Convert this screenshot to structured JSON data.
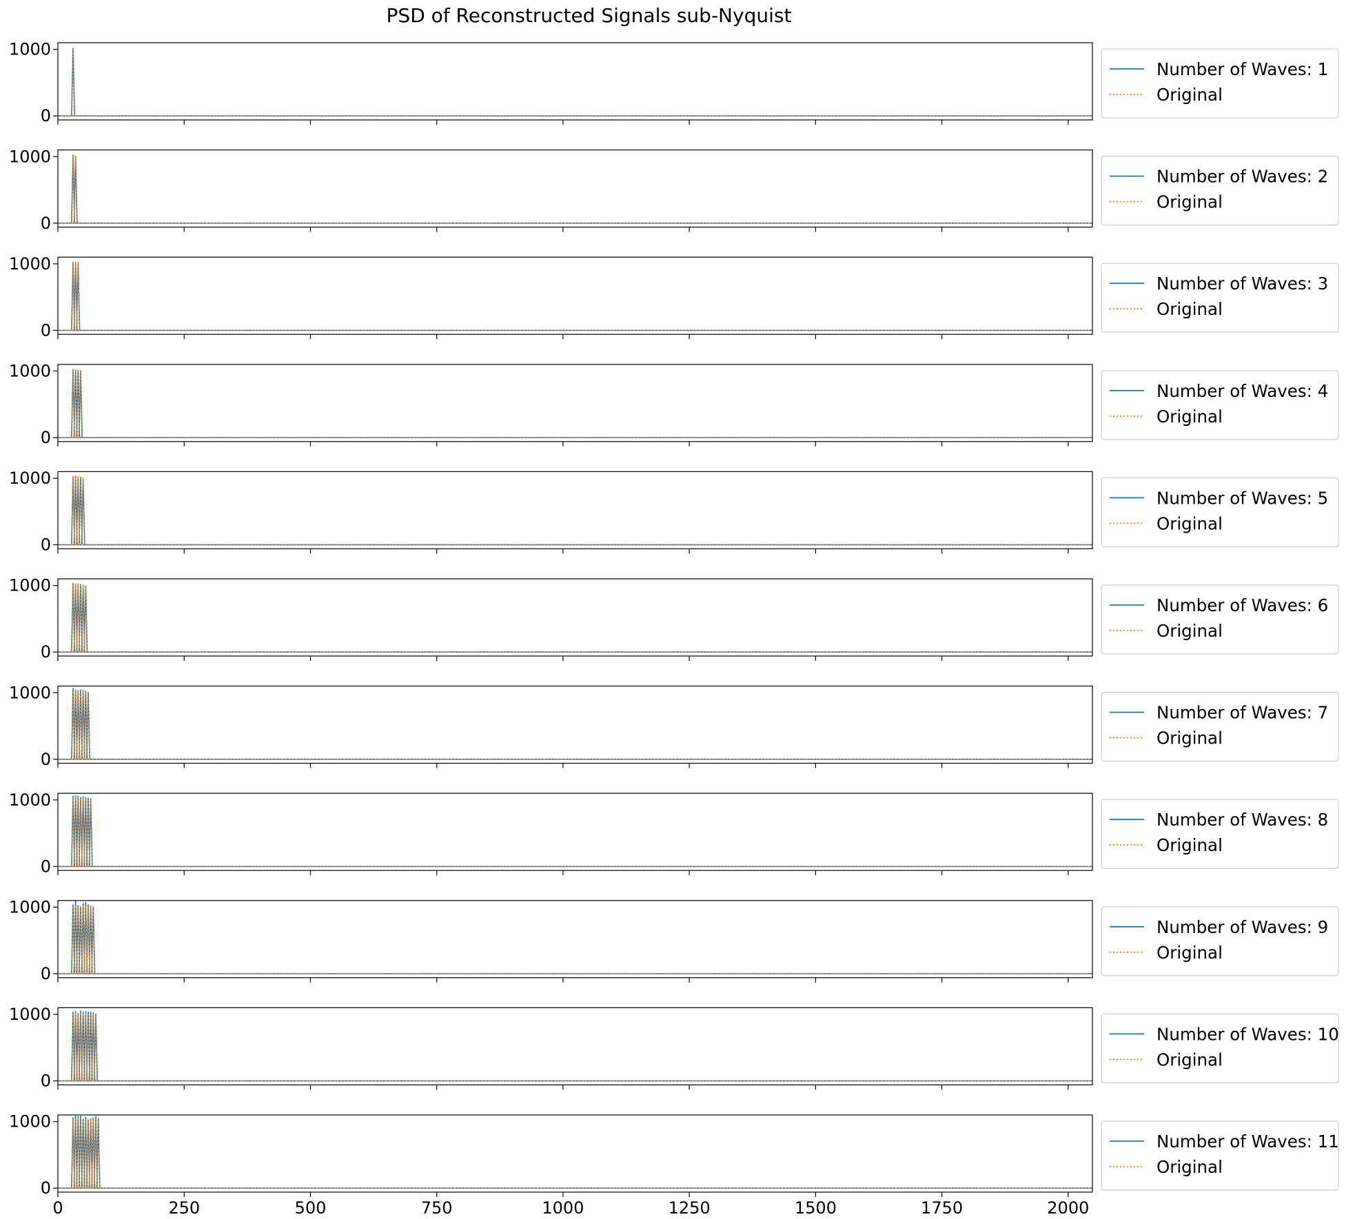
{
  "chart_data": {
    "type": "line",
    "title": "PSD of Reconstructed Signals sub-Nyquist",
    "xlabel": "",
    "ylabel": "",
    "xlim": [
      0,
      2048
    ],
    "ylim": [
      -60,
      1100
    ],
    "x_ticks": [
      0,
      250,
      500,
      750,
      1000,
      1250,
      1500,
      1750,
      2000
    ],
    "y_ticks": [
      0,
      1000
    ],
    "grid": false,
    "legend_placement": "outside right",
    "colors": {
      "reconstructed": "#1f77b4",
      "original": "#ff7f0e"
    },
    "panels": [
      {
        "series": [
          {
            "name": "Number of Waves: 1",
            "style": "solid",
            "peaks": [
              [
                30,
                1020
              ]
            ]
          },
          {
            "name": "Original",
            "style": "dotted",
            "peaks": [
              [
                30,
                1020
              ]
            ]
          }
        ]
      },
      {
        "series": [
          {
            "name": "Number of Waves: 2",
            "style": "solid",
            "peaks": [
              [
                30,
                1030
              ],
              [
                35,
                1010
              ]
            ]
          },
          {
            "name": "Original",
            "style": "dotted",
            "peaks": [
              [
                30,
                1030
              ],
              [
                35,
                1010
              ]
            ]
          }
        ]
      },
      {
        "series": [
          {
            "name": "Number of Waves: 3",
            "style": "solid",
            "peaks": [
              [
                30,
                1030
              ],
              [
                35,
                1030
              ],
              [
                40,
                1030
              ]
            ]
          },
          {
            "name": "Original",
            "style": "dotted",
            "peaks": [
              [
                30,
                1030
              ],
              [
                35,
                1030
              ],
              [
                40,
                1030
              ]
            ]
          }
        ]
      },
      {
        "series": [
          {
            "name": "Number of Waves: 4",
            "style": "solid",
            "peaks": [
              [
                30,
                1030
              ],
              [
                35,
                1020
              ],
              [
                40,
                1020
              ],
              [
                45,
                1010
              ]
            ]
          },
          {
            "name": "Original",
            "style": "dotted",
            "peaks": [
              [
                30,
                1030
              ],
              [
                35,
                1020
              ],
              [
                40,
                1020
              ],
              [
                45,
                1010
              ]
            ]
          }
        ]
      },
      {
        "series": [
          {
            "name": "Number of Waves: 5",
            "style": "solid",
            "peaks": [
              [
                30,
                1030
              ],
              [
                35,
                1040
              ],
              [
                40,
                1030
              ],
              [
                45,
                1020
              ],
              [
                50,
                1010
              ]
            ]
          },
          {
            "name": "Original",
            "style": "dotted",
            "peaks": [
              [
                30,
                1030
              ],
              [
                35,
                1040
              ],
              [
                40,
                1030
              ],
              [
                45,
                1020
              ],
              [
                50,
                1010
              ]
            ]
          }
        ]
      },
      {
        "series": [
          {
            "name": "Number of Waves: 6",
            "style": "solid",
            "peaks": [
              [
                30,
                1040
              ],
              [
                35,
                1030
              ],
              [
                40,
                1030
              ],
              [
                45,
                1020
              ],
              [
                50,
                1010
              ],
              [
                55,
                1000
              ]
            ]
          },
          {
            "name": "Original",
            "style": "dotted",
            "peaks": [
              [
                30,
                1040
              ],
              [
                35,
                1030
              ],
              [
                40,
                1030
              ],
              [
                45,
                1020
              ],
              [
                50,
                1010
              ],
              [
                55,
                1000
              ]
            ]
          }
        ]
      },
      {
        "series": [
          {
            "name": "Number of Waves: 7",
            "style": "solid",
            "peaks": [
              [
                30,
                1070
              ],
              [
                35,
                1050
              ],
              [
                40,
                1040
              ],
              [
                45,
                1050
              ],
              [
                50,
                1040
              ],
              [
                55,
                1030
              ],
              [
                60,
                1010
              ]
            ]
          },
          {
            "name": "Original",
            "style": "dotted",
            "peaks": [
              [
                30,
                1050
              ],
              [
                35,
                1040
              ],
              [
                40,
                1030
              ],
              [
                45,
                1040
              ],
              [
                50,
                1030
              ],
              [
                55,
                1020
              ],
              [
                60,
                1000
              ]
            ]
          }
        ]
      },
      {
        "series": [
          {
            "name": "Number of Waves: 8",
            "style": "solid",
            "peaks": [
              [
                30,
                1060
              ],
              [
                35,
                1070
              ],
              [
                40,
                1060
              ],
              [
                45,
                1040
              ],
              [
                50,
                1050
              ],
              [
                55,
                1040
              ],
              [
                60,
                1030
              ],
              [
                65,
                1020
              ]
            ]
          },
          {
            "name": "Original",
            "style": "dotted",
            "peaks": [
              [
                30,
                1040
              ],
              [
                35,
                1050
              ],
              [
                40,
                1040
              ],
              [
                45,
                1030
              ],
              [
                50,
                1030
              ],
              [
                55,
                1020
              ],
              [
                60,
                1020
              ],
              [
                65,
                1000
              ]
            ]
          }
        ]
      },
      {
        "series": [
          {
            "name": "Number of Waves: 9",
            "style": "solid",
            "peaks": [
              [
                30,
                1040
              ],
              [
                35,
                1100
              ],
              [
                40,
                1030
              ],
              [
                45,
                1010
              ],
              [
                50,
                1060
              ],
              [
                55,
                1080
              ],
              [
                60,
                1040
              ],
              [
                65,
                1020
              ],
              [
                70,
                1010
              ]
            ]
          },
          {
            "name": "Original",
            "style": "dotted",
            "peaks": [
              [
                30,
                1020
              ],
              [
                35,
                1050
              ],
              [
                40,
                1000
              ],
              [
                45,
                990
              ],
              [
                50,
                1030
              ],
              [
                55,
                1030
              ],
              [
                60,
                1010
              ],
              [
                65,
                1000
              ],
              [
                70,
                990
              ]
            ]
          }
        ]
      },
      {
        "series": [
          {
            "name": "Number of Waves: 10",
            "style": "solid",
            "peaks": [
              [
                30,
                1040
              ],
              [
                35,
                1050
              ],
              [
                40,
                1020
              ],
              [
                45,
                1060
              ],
              [
                50,
                1040
              ],
              [
                55,
                1050
              ],
              [
                60,
                1040
              ],
              [
                65,
                1040
              ],
              [
                70,
                1030
              ],
              [
                75,
                1010
              ]
            ]
          },
          {
            "name": "Original",
            "style": "dotted",
            "peaks": [
              [
                30,
                1020
              ],
              [
                35,
                1030
              ],
              [
                40,
                1000
              ],
              [
                45,
                1030
              ],
              [
                50,
                1020
              ],
              [
                55,
                1030
              ],
              [
                60,
                1020
              ],
              [
                65,
                1020
              ],
              [
                70,
                1010
              ],
              [
                75,
                990
              ]
            ]
          }
        ]
      },
      {
        "series": [
          {
            "name": "Number of Waves: 11",
            "style": "solid",
            "peaks": [
              [
                30,
                1060
              ],
              [
                35,
                1090
              ],
              [
                40,
                1080
              ],
              [
                45,
                1090
              ],
              [
                50,
                1040
              ],
              [
                55,
                1070
              ],
              [
                60,
                1030
              ],
              [
                65,
                1050
              ],
              [
                70,
                1060
              ],
              [
                75,
                1080
              ],
              [
                80,
                1050
              ]
            ]
          },
          {
            "name": "Original",
            "style": "dotted",
            "peaks": [
              [
                30,
                1030
              ],
              [
                35,
                1040
              ],
              [
                40,
                1050
              ],
              [
                45,
                1050
              ],
              [
                50,
                1020
              ],
              [
                55,
                1040
              ],
              [
                60,
                1010
              ],
              [
                65,
                1030
              ],
              [
                70,
                1030
              ],
              [
                75,
                1040
              ],
              [
                80,
                1020
              ]
            ]
          }
        ]
      }
    ]
  }
}
